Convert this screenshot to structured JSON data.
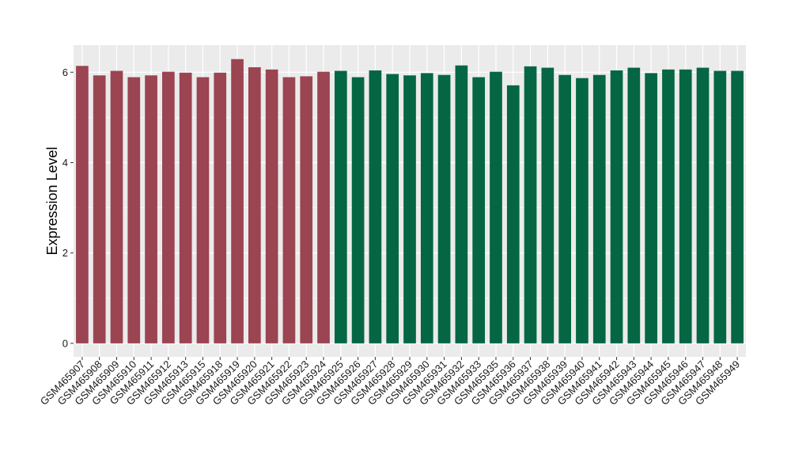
{
  "chart_data": {
    "type": "bar",
    "ylabel": "Expression Level",
    "xlabel": "",
    "ylim": [
      -0.3,
      6.6
    ],
    "yticks": [
      0,
      2,
      4,
      6
    ],
    "grid": true,
    "legend": "none",
    "colors": {
      "group1": "#9b4452",
      "group2": "#056644",
      "panel": "#ebebeb",
      "grid": "#ffffff"
    },
    "categories": [
      "GSM465907",
      "GSM465908",
      "GSM465909",
      "GSM465910",
      "GSM465911",
      "GSM465912",
      "GSM465913",
      "GSM465915",
      "GSM465918",
      "GSM465919",
      "GSM465920",
      "GSM465921",
      "GSM465922",
      "GSM465923",
      "GSM465924",
      "GSM465925",
      "GSM465926",
      "GSM465927",
      "GSM465928",
      "GSM465929",
      "GSM465930",
      "GSM465931",
      "GSM465932",
      "GSM465933",
      "GSM465935",
      "GSM465936",
      "GSM465937",
      "GSM465938",
      "GSM465939",
      "GSM465940",
      "GSM465941",
      "GSM465942",
      "GSM465943",
      "GSM465944",
      "GSM465945",
      "GSM465946",
      "GSM465947",
      "GSM465948",
      "GSM465949"
    ],
    "values": [
      6.14,
      5.93,
      6.03,
      5.89,
      5.93,
      6.01,
      5.99,
      5.89,
      5.99,
      6.29,
      6.11,
      6.06,
      5.89,
      5.91,
      6.01,
      6.03,
      5.89,
      6.04,
      5.96,
      5.93,
      5.98,
      5.94,
      6.15,
      5.89,
      6.01,
      5.71,
      6.13,
      6.1,
      5.94,
      5.87,
      5.94,
      6.04,
      6.1,
      5.98,
      6.06,
      6.06,
      6.1,
      6.03,
      6.03
    ],
    "groups": [
      1,
      1,
      1,
      1,
      1,
      1,
      1,
      1,
      1,
      1,
      1,
      1,
      1,
      1,
      1,
      2,
      2,
      2,
      2,
      2,
      2,
      2,
      2,
      2,
      2,
      2,
      2,
      2,
      2,
      2,
      2,
      2,
      2,
      2,
      2,
      2,
      2,
      2,
      2
    ]
  }
}
